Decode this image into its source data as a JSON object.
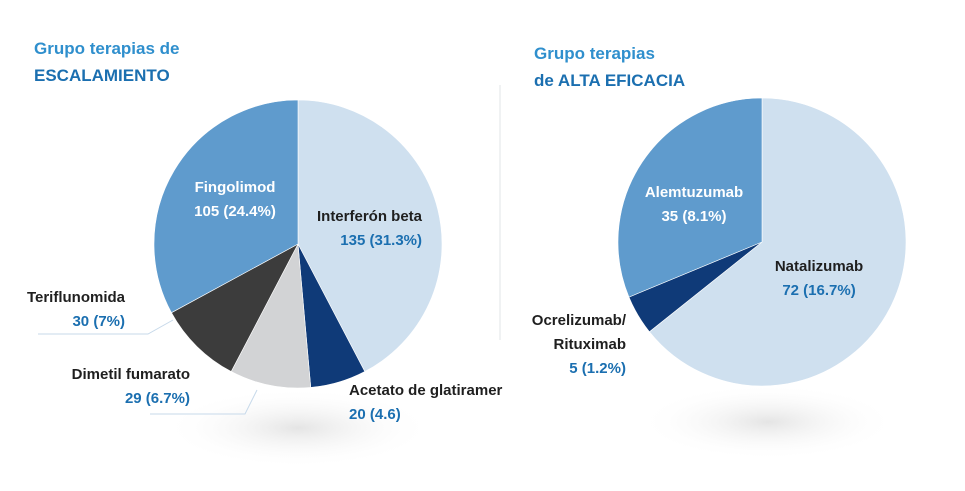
{
  "colors": {
    "title_line1": "#2f8fcd",
    "title_line2": "#1b6fb0",
    "value_text": "#1b6fb0",
    "label_text": "#1f1f1f",
    "divider": "#e2e4e7"
  },
  "chart_data": [
    {
      "type": "pie",
      "title": [
        "Grupo terapias de",
        "ESCALAMIENTO"
      ],
      "start": "12 o'clock",
      "direction": "clockwise",
      "slices": [
        {
          "label": "Interferón beta",
          "value": 135,
          "display": "135 (31.3%)",
          "color": "#cfe0ef"
        },
        {
          "label": "Acetato de glatiramer",
          "value": 20,
          "display": "20 (4.6)",
          "color": "#0f3a78"
        },
        {
          "label": "Dimetil fumarato",
          "value": 29,
          "display": "29 (6.7%)",
          "color": "#d2d3d5"
        },
        {
          "label": "Teriflunomida",
          "value": 30,
          "display": "30 (7%)",
          "color": "#3c3c3c"
        },
        {
          "label": "Fingolimod",
          "value": 105,
          "display": "105 (24.4%)",
          "color": "#5f9bcd"
        }
      ]
    },
    {
      "type": "pie",
      "title": [
        "Grupo terapias",
        "de ALTA EFICACIA"
      ],
      "start": "12 o'clock",
      "direction": "clockwise",
      "slices": [
        {
          "label": "Natalizumab",
          "value": 72,
          "display": "72 (16.7%)",
          "color": "#cfe0ef"
        },
        {
          "label": "Ocrelizumab/ Rituximab",
          "label_lines": [
            "Ocrelizumab/",
            "Rituximab"
          ],
          "value": 5,
          "display": "5 (1.2%)",
          "color": "#0f3a78"
        },
        {
          "label": "Alemtuzumab",
          "value": 35,
          "display": "35 (8.1%)",
          "color": "#5f9bcd"
        }
      ]
    }
  ]
}
